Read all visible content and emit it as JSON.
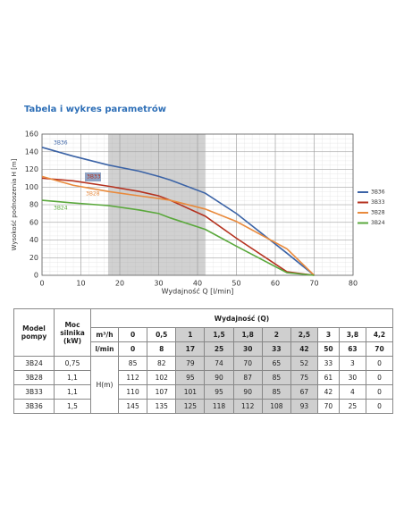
{
  "chart_data": {
    "type": "line",
    "title": "Tabela i wykres parametrów",
    "x_label": "Wydajność Q [l/min]",
    "y_label": "Wysokość podnoszenia H [m]",
    "x": [
      0,
      8,
      17,
      25,
      30,
      33,
      42,
      50,
      63,
      70
    ],
    "series": [
      {
        "name": "3B36",
        "color": "#3b63a6",
        "values": [
          145,
          135,
          125,
          118,
          112,
          108,
          93,
          70,
          25,
          0
        ]
      },
      {
        "name": "3B33",
        "color": "#b5321f",
        "values": [
          110,
          107,
          101,
          95,
          90,
          85,
          67,
          42,
          4,
          0
        ]
      },
      {
        "name": "3B28",
        "color": "#e98a3c",
        "values": [
          112,
          102,
          95,
          90,
          87,
          85,
          75,
          61,
          30,
          0
        ]
      },
      {
        "name": "3B24",
        "color": "#5aa83c",
        "values": [
          85,
          82,
          79,
          74,
          70,
          65,
          52,
          33,
          3,
          0
        ]
      }
    ],
    "xlim": [
      0,
      80
    ],
    "ylim": [
      0,
      160
    ],
    "xticks": [
      0,
      10,
      20,
      30,
      40,
      50,
      60,
      70,
      80
    ],
    "yticks": [
      0,
      20,
      40,
      60,
      80,
      100,
      120,
      140,
      160
    ],
    "shaded_x": [
      17,
      42
    ],
    "grid": true,
    "legend": "right"
  },
  "table": {
    "header": {
      "model": "Model pompy",
      "power": "Moc silnika (kW)",
      "flow": "Wydajność (Q)",
      "unit_m3h": "m³/h",
      "unit_lmin": "l/min",
      "head_unit": "H(m)"
    },
    "m3h": [
      "0",
      "0,5",
      "1",
      "1,5",
      "1,8",
      "2",
      "2,5",
      "3",
      "3,8",
      "4,2"
    ],
    "lmin": [
      0,
      8,
      17,
      25,
      30,
      33,
      42,
      50,
      63,
      70
    ],
    "rows": [
      {
        "model": "3B24",
        "power": "0,75",
        "values": [
          85,
          82,
          79,
          74,
          70,
          65,
          52,
          33,
          3,
          0
        ]
      },
      {
        "model": "3B28",
        "power": "1,1",
        "values": [
          112,
          102,
          95,
          90,
          87,
          85,
          75,
          61,
          30,
          0
        ]
      },
      {
        "model": "3B33",
        "power": "1,1",
        "values": [
          110,
          107,
          101,
          95,
          90,
          85,
          67,
          42,
          4,
          0
        ]
      },
      {
        "model": "3B36",
        "power": "1,5",
        "values": [
          145,
          135,
          125,
          118,
          112,
          108,
          93,
          70,
          25,
          0
        ]
      }
    ]
  }
}
